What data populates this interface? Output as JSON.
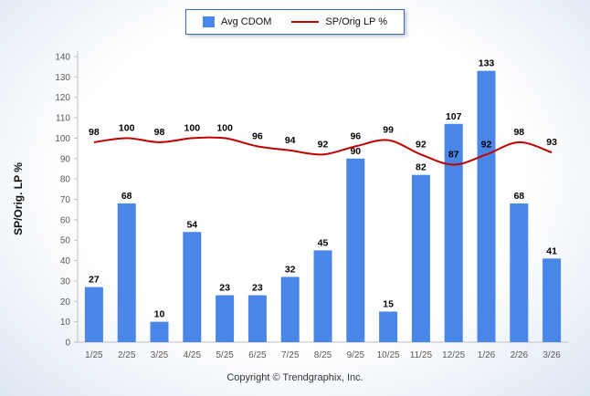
{
  "footer": {
    "copyright": "Copyright © Trendgraphix, Inc."
  },
  "chart_data": {
    "type": "bar",
    "subtype": "bar+line combo",
    "categories": [
      "1/25",
      "2/25",
      "3/25",
      "4/25",
      "5/25",
      "6/25",
      "7/25",
      "8/25",
      "9/25",
      "10/25",
      "11/25",
      "12/25",
      "1/26",
      "2/26",
      "3/26"
    ],
    "series": [
      {
        "name": "Avg CDOM",
        "type": "bar",
        "color": "#4a86e8",
        "values": [
          27,
          68,
          10,
          54,
          23,
          23,
          32,
          45,
          90,
          15,
          82,
          107,
          133,
          68,
          41
        ]
      },
      {
        "name": "SP/Orig LP %",
        "type": "line",
        "color": "#c00000",
        "values": [
          98,
          100,
          98,
          100,
          100,
          96,
          94,
          92,
          96,
          99,
          92,
          87,
          92,
          98,
          93
        ]
      }
    ],
    "title": "",
    "xlabel": "",
    "ylabel": "SP/Orig. LP %",
    "ylim": [
      0,
      140
    ],
    "ytick_step": 10,
    "grid": false,
    "legend_position": "top-center",
    "value_labels": true
  }
}
